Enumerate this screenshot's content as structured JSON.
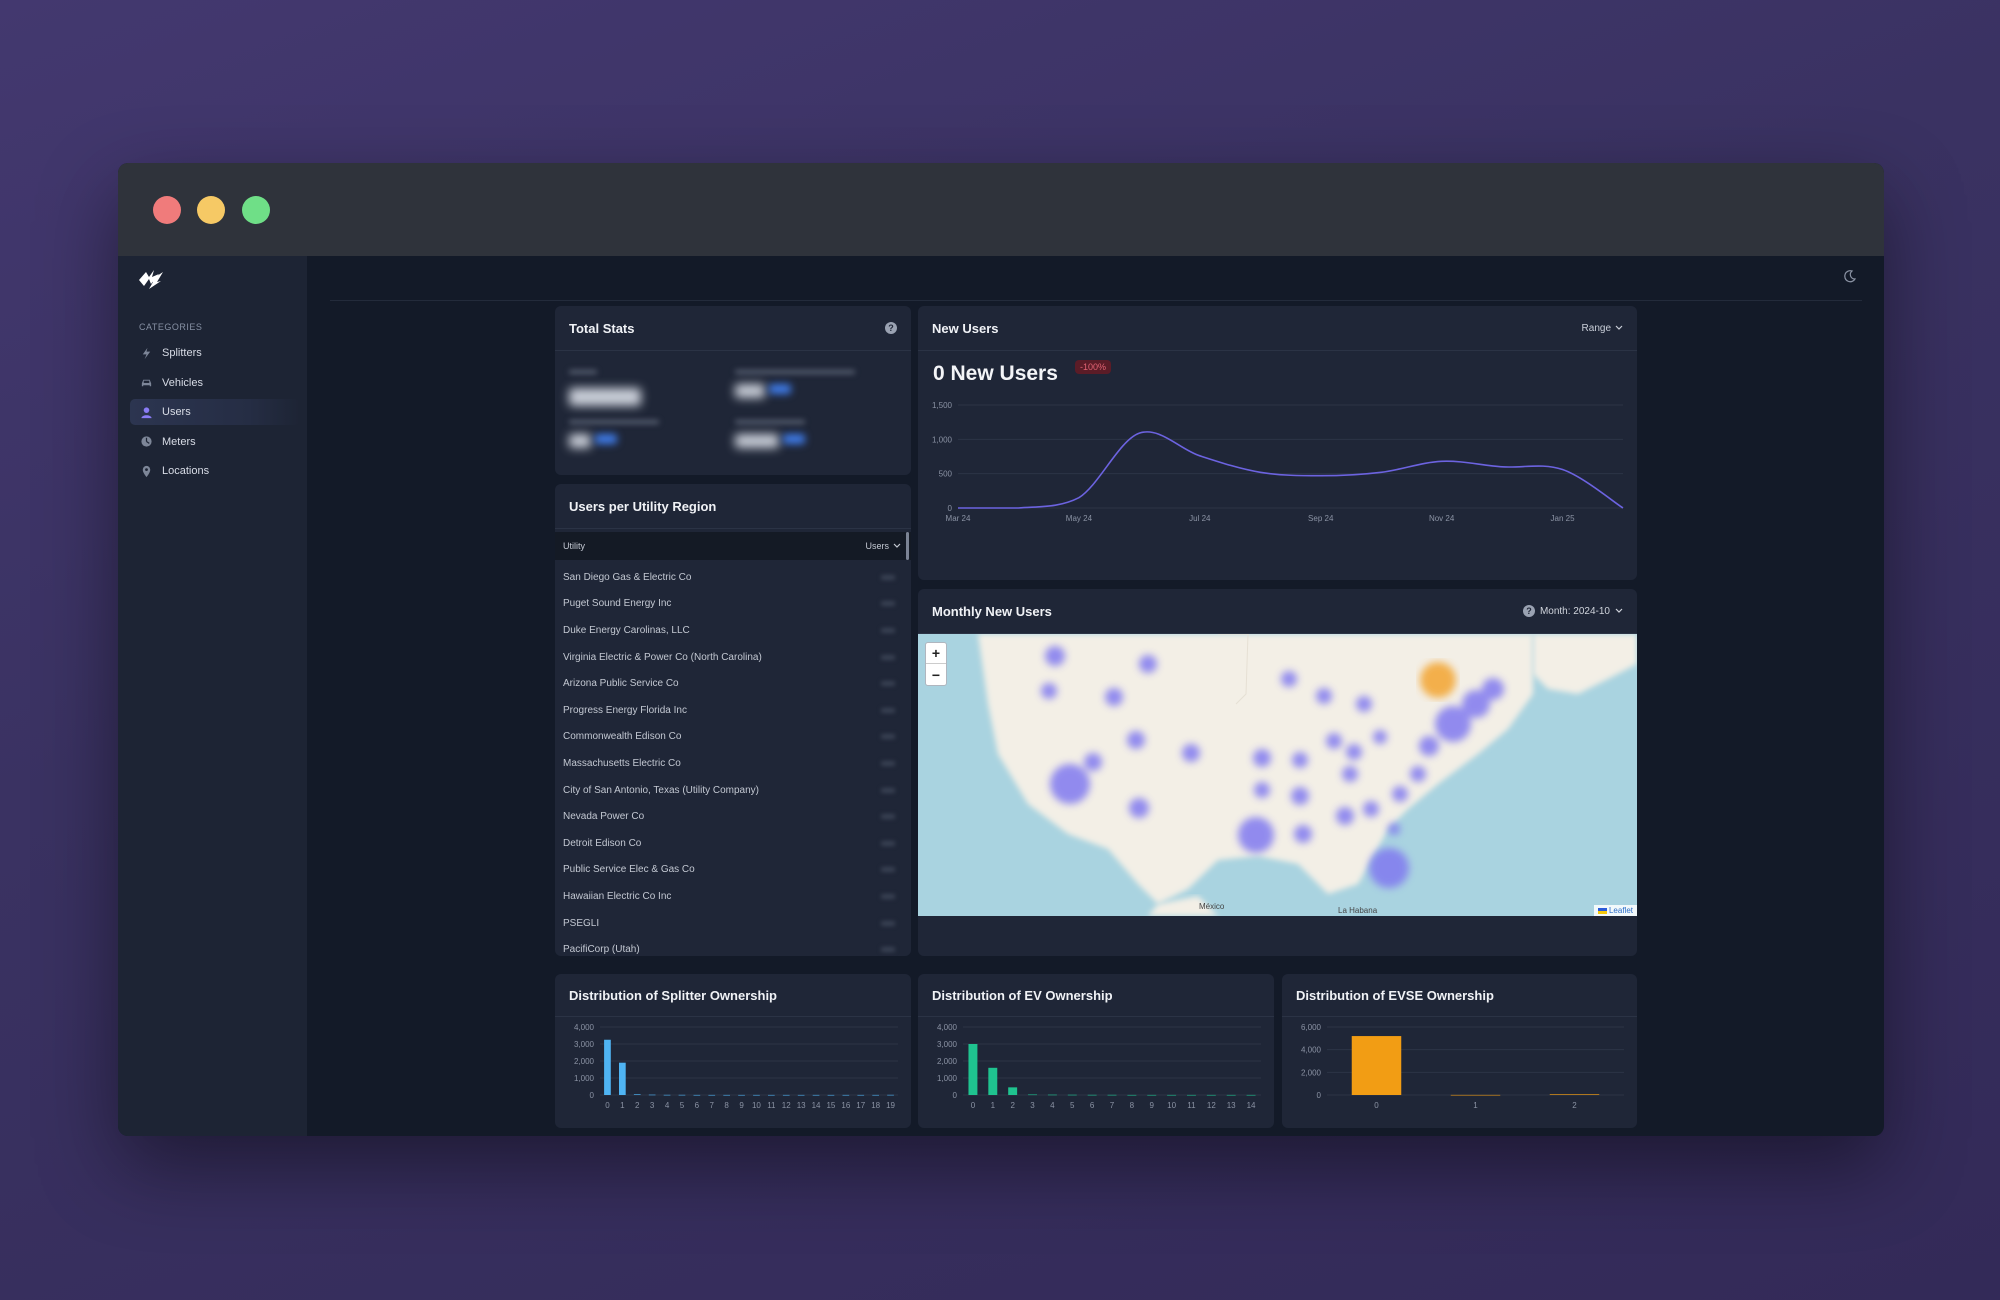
{
  "sidebar": {
    "category_label": "CATEGORIES",
    "items": [
      {
        "label": "Splitters",
        "icon": "bolt-icon"
      },
      {
        "label": "Vehicles",
        "icon": "car-icon"
      },
      {
        "label": "Users",
        "icon": "user-icon",
        "active": true
      },
      {
        "label": "Meters",
        "icon": "meter-icon"
      },
      {
        "label": "Locations",
        "icon": "pin-icon"
      }
    ]
  },
  "total_stats": {
    "title": "Total Stats"
  },
  "utility": {
    "title": "Users per Utility Region",
    "col_utility": "Utility",
    "col_users": "Users",
    "rows": [
      "San Diego Gas & Electric Co",
      "Puget Sound Energy Inc",
      "Duke Energy Carolinas, LLC",
      "Virginia Electric & Power Co (North Carolina)",
      "Arizona Public Service Co",
      "Progress Energy Florida Inc",
      "Commonwealth Edison Co",
      "Massachusetts Electric Co",
      "City of San Antonio, Texas (Utility Company)",
      "Nevada Power Co",
      "Detroit Edison Co",
      "Public Service Elec & Gas Co",
      "Hawaiian Electric Co Inc",
      "PSEGLI",
      "PacifiCorp (Utah)"
    ]
  },
  "new_users": {
    "title": "New Users",
    "range_label": "Range",
    "headline": "0 New Users",
    "badge": "-100%",
    "line_color": "#6c63e0"
  },
  "monthly": {
    "title": "Monthly New Users",
    "month_label": "Month: 2024-10",
    "map_labels": {
      "mexico": "México",
      "havana": "La Habana",
      "attribution": "Leaflet"
    },
    "zoom_in": "+",
    "zoom_out": "−"
  },
  "splitter_dist": {
    "title": "Distribution of Splitter Ownership"
  },
  "ev_dist": {
    "title": "Distribution of EV Ownership"
  },
  "evse_dist": {
    "title": "Distribution of EVSE Ownership"
  },
  "chart_data": [
    {
      "type": "line",
      "title": "New Users",
      "x": [
        "Mar 24",
        "Apr 24",
        "May 24",
        "Jun 24",
        "Jul 24",
        "Aug 24",
        "Sep 24",
        "Oct 24",
        "Nov 24",
        "Dec 24",
        "Jan 25",
        "Feb 25"
      ],
      "x_ticks": [
        "Mar 24",
        "May 24",
        "Jul 24",
        "Sep 24",
        "Nov 24",
        "Jan 25"
      ],
      "values": [
        0,
        0,
        150,
        1090,
        760,
        520,
        470,
        520,
        680,
        600,
        560,
        0
      ],
      "ylim": [
        0,
        1500
      ],
      "y_ticks": [
        "0",
        "500",
        "1,000",
        "1,500"
      ],
      "color": "#6c63e0"
    },
    {
      "type": "bar",
      "title": "Distribution of Splitter Ownership",
      "categories": [
        "0",
        "1",
        "2",
        "3",
        "4",
        "5",
        "6",
        "7",
        "8",
        "9",
        "10",
        "11",
        "12",
        "13",
        "14",
        "15",
        "16",
        "17",
        "18",
        "19"
      ],
      "values": [
        3250,
        1900,
        40,
        20,
        10,
        10,
        5,
        5,
        5,
        5,
        5,
        5,
        5,
        5,
        5,
        5,
        5,
        5,
        5,
        10
      ],
      "ylim": [
        0,
        4000
      ],
      "y_ticks": [
        "0",
        "1,000",
        "2,000",
        "3,000",
        "4,000"
      ],
      "color": "#4fb4f3"
    },
    {
      "type": "bar",
      "title": "Distribution of EV Ownership",
      "categories": [
        "0",
        "1",
        "2",
        "3",
        "4",
        "5",
        "6",
        "7",
        "8",
        "9",
        "10",
        "11",
        "12",
        "13",
        "14"
      ],
      "values": [
        3000,
        1600,
        450,
        30,
        20,
        15,
        10,
        10,
        5,
        5,
        5,
        5,
        5,
        5,
        5
      ],
      "ylim": [
        0,
        4000
      ],
      "y_ticks": [
        "0",
        "1,000",
        "2,000",
        "3,000",
        "4,000"
      ],
      "color": "#1fc38f"
    },
    {
      "type": "bar",
      "title": "Distribution of EVSE Ownership",
      "categories": [
        "0",
        "1",
        "2"
      ],
      "values": [
        5200,
        10,
        60
      ],
      "ylim": [
        0,
        6000
      ],
      "y_ticks": [
        "0",
        "2,000",
        "4,000",
        "6,000"
      ],
      "color": "#f29d14"
    }
  ]
}
